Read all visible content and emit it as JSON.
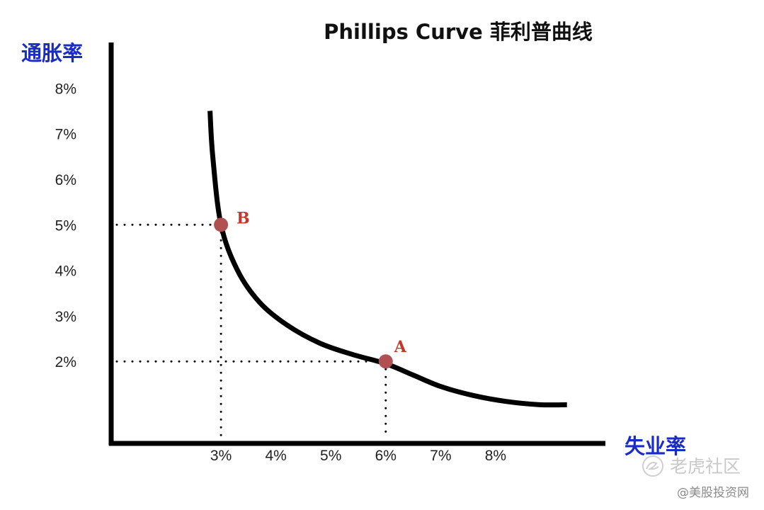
{
  "chart_data": {
    "type": "line",
    "title": "Phillips Curve 菲利普曲线",
    "xlabel": "失业率",
    "ylabel": "通胀率",
    "x_ticks": [
      "3%",
      "4%",
      "5%",
      "6%",
      "7%",
      "8%"
    ],
    "y_ticks": [
      "8%",
      "7%",
      "6%",
      "5%",
      "4%",
      "3%",
      "2%"
    ],
    "xlim": [
      1.0,
      10.0
    ],
    "ylim": [
      0.2,
      9.0
    ],
    "grid": false,
    "legend": "none",
    "series": [
      {
        "x": [
          2.8,
          2.85,
          3.0,
          3.3,
          3.7,
          4.2,
          4.8,
          5.4,
          6.0,
          6.5,
          7.0,
          7.6,
          8.2,
          8.8,
          9.3
        ],
        "y": [
          7.5,
          6.5,
          5.0,
          4.0,
          3.3,
          2.8,
          2.4,
          2.15,
          1.95,
          1.7,
          1.45,
          1.25,
          1.12,
          1.05,
          1.05
        ]
      }
    ],
    "points": [
      {
        "label": "B",
        "x": 3.0,
        "y": 5.0
      },
      {
        "label": "A",
        "x": 6.0,
        "y": 2.0
      }
    ],
    "colors": {
      "curve": "#000000",
      "point": "#b05050",
      "point_label": "#c0392b",
      "axis_title": "#1a2cc8"
    }
  },
  "watermark": {
    "main": "老虎社区",
    "sub": "@美股投资网"
  }
}
